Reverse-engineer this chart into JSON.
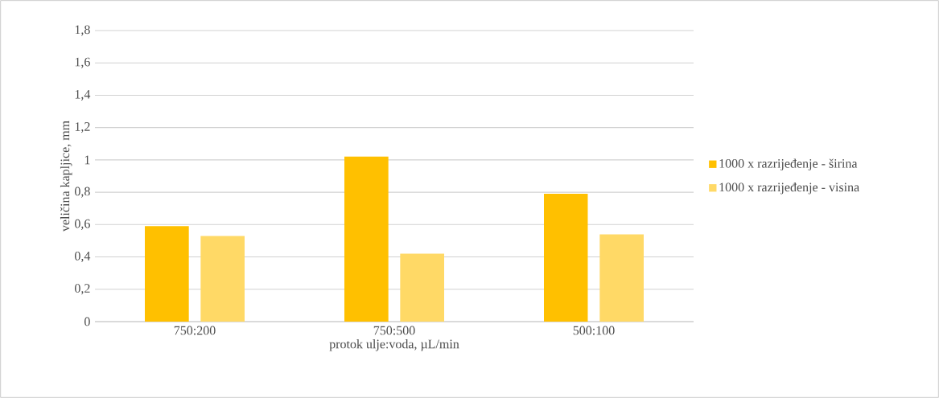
{
  "chart_data": {
    "type": "bar",
    "xlabel": "protok ulje:voda, µL/min",
    "ylabel": "veličina kapljice, mm",
    "categories": [
      "750:200",
      "750:500",
      "500:100"
    ],
    "series": [
      {
        "name": "1000 x razrijeđenje - širina",
        "color": "#ffc000",
        "values": [
          0.59,
          1.02,
          0.79
        ]
      },
      {
        "name": "1000 x razrijeđenje - visina",
        "color": "#ffd966",
        "values": [
          0.53,
          0.42,
          0.54
        ]
      }
    ],
    "ylim": [
      0,
      1.8
    ],
    "yticks": [
      {
        "value": 0,
        "label": "0"
      },
      {
        "value": 0.2,
        "label": "0,2"
      },
      {
        "value": 0.4,
        "label": "0,4"
      },
      {
        "value": 0.6,
        "label": "0,6"
      },
      {
        "value": 0.8,
        "label": "0,8"
      },
      {
        "value": 1,
        "label": "1"
      },
      {
        "value": 1.2,
        "label": "1,2"
      },
      {
        "value": 1.4,
        "label": "1,4"
      },
      {
        "value": 1.6,
        "label": "1,6"
      },
      {
        "value": 1.8,
        "label": "1,8"
      }
    ],
    "grid": "y",
    "legend": "right"
  }
}
